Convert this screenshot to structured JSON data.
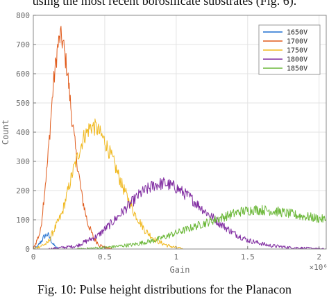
{
  "context": {
    "top_text": "using the most recent borosilicate substrates (Fig. 6).",
    "bottom_text": "Fig. 10: Pulse height distributions for the Planacon"
  },
  "chart_data": {
    "type": "line",
    "title": "",
    "xlabel": "Gain",
    "ylabel": "Count",
    "x_exponent_label": "×10⁶",
    "xlim": [
      0,
      2.05
    ],
    "ylim": [
      0,
      800
    ],
    "x_ticks": [
      0,
      0.5,
      1,
      1.5,
      2
    ],
    "x_tick_labels": [
      "0",
      "0.5",
      "1",
      "1.5",
      "2"
    ],
    "y_ticks": [
      0,
      100,
      200,
      300,
      400,
      500,
      600,
      700,
      800
    ],
    "y_tick_labels": [
      "0",
      "100",
      "200",
      "300",
      "400",
      "500",
      "600",
      "700",
      "800"
    ],
    "grid": true,
    "legend_position": "top-right",
    "series": [
      {
        "name": "1650V",
        "color": "#1f6fd0",
        "x": [
          0.0,
          0.03,
          0.06,
          0.08,
          0.1,
          0.12,
          0.14,
          0.16,
          0.18
        ],
        "y": [
          0,
          8,
          30,
          45,
          50,
          35,
          15,
          5,
          0
        ]
      },
      {
        "name": "1700V",
        "color": "#e05a1a",
        "x": [
          0.0,
          0.05,
          0.1,
          0.14,
          0.17,
          0.19,
          0.21,
          0.24,
          0.27,
          0.3,
          0.34,
          0.38,
          0.42,
          0.46,
          0.5,
          0.55
        ],
        "y": [
          0,
          60,
          300,
          560,
          690,
          730,
          700,
          600,
          450,
          320,
          180,
          90,
          40,
          15,
          5,
          0
        ]
      },
      {
        "name": "1750V",
        "color": "#f0b81e",
        "x": [
          0.0,
          0.1,
          0.2,
          0.28,
          0.35,
          0.4,
          0.44,
          0.5,
          0.56,
          0.62,
          0.7,
          0.78,
          0.86,
          0.95,
          1.05
        ],
        "y": [
          0,
          20,
          120,
          270,
          380,
          420,
          415,
          370,
          300,
          220,
          130,
          65,
          28,
          10,
          0
        ]
      },
      {
        "name": "1800V",
        "color": "#7f2aa0",
        "x": [
          0.1,
          0.3,
          0.45,
          0.55,
          0.65,
          0.75,
          0.85,
          0.92,
          1.0,
          1.1,
          1.2,
          1.3,
          1.4,
          1.5,
          1.65,
          1.8,
          1.95,
          2.05
        ],
        "y": [
          0,
          10,
          45,
          90,
          140,
          190,
          220,
          225,
          210,
          175,
          130,
          90,
          55,
          30,
          12,
          5,
          2,
          0
        ]
      },
      {
        "name": "1850V",
        "color": "#6cb83a",
        "x": [
          0.3,
          0.5,
          0.7,
          0.85,
          1.0,
          1.15,
          1.3,
          1.45,
          1.55,
          1.65,
          1.75,
          1.85,
          1.95,
          2.05
        ],
        "y": [
          0,
          5,
          15,
          30,
          55,
          80,
          105,
          128,
          135,
          132,
          125,
          115,
          108,
          100
        ]
      }
    ]
  }
}
